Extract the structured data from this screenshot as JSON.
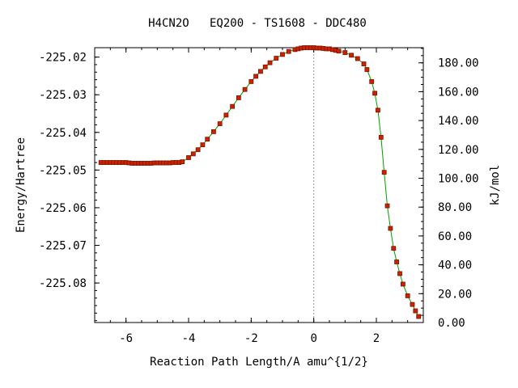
{
  "chart_data": {
    "type": "line",
    "title": "H4CN2O   EQ200 - TS1608 - DDC480",
    "xlabel": "Reaction Path Length/A amu^{1/2}",
    "ylabel": "Energy/Hartree",
    "y2label": "kJ/mol",
    "xlim": [
      -7.0,
      3.5
    ],
    "ylim": [
      -225.0905,
      -225.0175
    ],
    "y2lim": [
      0,
      190.5
    ],
    "x_ticks": [
      "-6",
      "-4",
      "-2",
      "0",
      "2"
    ],
    "y_ticks": [
      "-225.02",
      "-225.03",
      "-225.04",
      "-225.05",
      "-225.06",
      "-225.07",
      "-225.08"
    ],
    "y2_ticks": [
      "0.00",
      "20.00",
      "40.00",
      "60.00",
      "80.00",
      "100.00",
      "120.00",
      "140.00",
      "160.00",
      "180.00"
    ],
    "reference_line_x": 0,
    "colors": {
      "line": "#00a000",
      "marker": "#cc2200",
      "marker_edge": "#7a1400",
      "reference": "#999999"
    },
    "series": [
      {
        "x": [
          -6.8,
          -6.7,
          -6.6,
          -6.5,
          -6.4,
          -6.3,
          -6.2,
          -6.1,
          -6.0,
          -5.9,
          -5.8,
          -5.7,
          -5.6,
          -5.5,
          -5.4,
          -5.3,
          -5.2,
          -5.1,
          -5.0,
          -4.9,
          -4.8,
          -4.7,
          -4.6,
          -4.5,
          -4.4,
          -4.3,
          -4.2,
          -4.0,
          -3.85,
          -3.7,
          -3.55,
          -3.4,
          -3.2,
          -3.0,
          -2.8,
          -2.6,
          -2.4,
          -2.2,
          -2.0,
          -1.85,
          -1.7,
          -1.55,
          -1.4,
          -1.2,
          -1.0,
          -0.8,
          -0.6,
          -0.5,
          -0.4,
          -0.3,
          -0.2,
          -0.1,
          0.0,
          0.1,
          0.2,
          0.3,
          0.4,
          0.5,
          0.6,
          0.7,
          0.8,
          1.0,
          1.2,
          1.4,
          1.6,
          1.7,
          1.85,
          1.95,
          2.05,
          2.15,
          2.25,
          2.35,
          2.45,
          2.55,
          2.65,
          2.75,
          2.85,
          3.0,
          3.15,
          3.25,
          3.35
        ],
        "values": [
          -225.048,
          -225.048,
          -225.048,
          -225.048,
          -225.048,
          -225.048,
          -225.048,
          -225.048,
          -225.048,
          -225.0481,
          -225.0482,
          -225.0482,
          -225.0482,
          -225.0482,
          -225.0482,
          -225.0482,
          -225.0482,
          -225.0481,
          -225.0481,
          -225.0481,
          -225.0481,
          -225.0481,
          -225.0481,
          -225.048,
          -225.048,
          -225.048,
          -225.0478,
          -225.0467,
          -225.0457,
          -225.0446,
          -225.0433,
          -225.0418,
          -225.0398,
          -225.0377,
          -225.0354,
          -225.0331,
          -225.0308,
          -225.0286,
          -225.0265,
          -225.0251,
          -225.0238,
          -225.0226,
          -225.0215,
          -225.0203,
          -225.0193,
          -225.0185,
          -225.018,
          -225.0178,
          -225.0176,
          -225.0175,
          -225.0175,
          -225.0175,
          -225.0175,
          -225.0176,
          -225.0176,
          -225.0177,
          -225.0178,
          -225.0178,
          -225.018,
          -225.0182,
          -225.0184,
          -225.0188,
          -225.0195,
          -225.0204,
          -225.0218,
          -225.0233,
          -225.0265,
          -225.0296,
          -225.0341,
          -225.0413,
          -225.0506,
          -225.0595,
          -225.0655,
          -225.0708,
          -225.0744,
          -225.0775,
          -225.0803,
          -225.0834,
          -225.0857,
          -225.0874,
          -225.0889
        ]
      }
    ]
  }
}
